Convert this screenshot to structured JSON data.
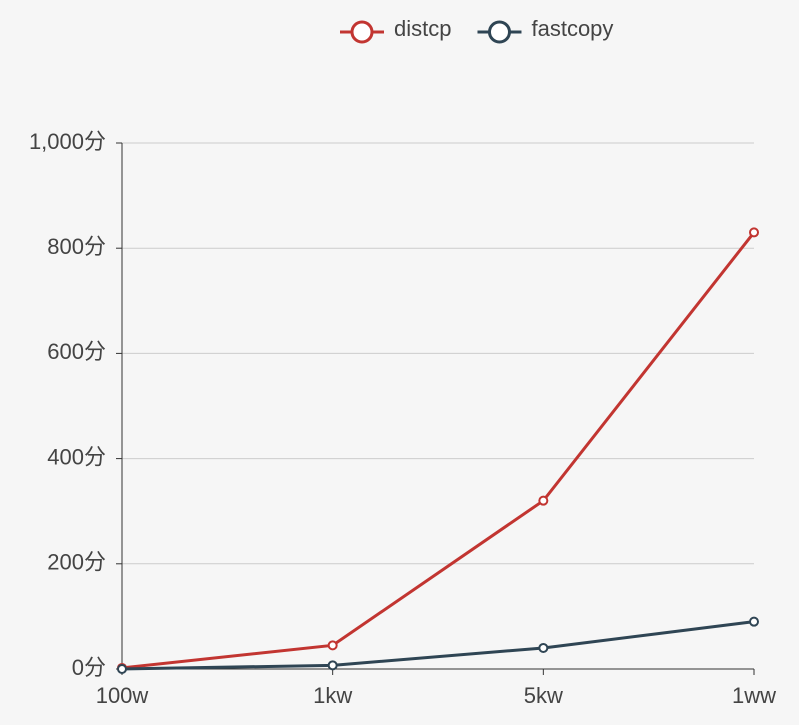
{
  "chart_data": {
    "type": "line",
    "categories": [
      "100w",
      "1kw",
      "5kw",
      "1ww"
    ],
    "series": [
      {
        "name": "distcp",
        "color": "#c23531",
        "values": [
          2,
          45,
          320,
          830
        ]
      },
      {
        "name": "fastcopy",
        "color": "#2f4554",
        "values": [
          0,
          7,
          40,
          90
        ]
      }
    ],
    "ylim": [
      0,
      1000
    ],
    "yticks": [
      {
        "value": 0,
        "label": "0分"
      },
      {
        "value": 200,
        "label": "200分"
      },
      {
        "value": 400,
        "label": "400分"
      },
      {
        "value": 600,
        "label": "600分"
      },
      {
        "value": 800,
        "label": "800分"
      },
      {
        "value": 1000,
        "label": "1,000分"
      }
    ],
    "grid": true,
    "legend": "top"
  }
}
